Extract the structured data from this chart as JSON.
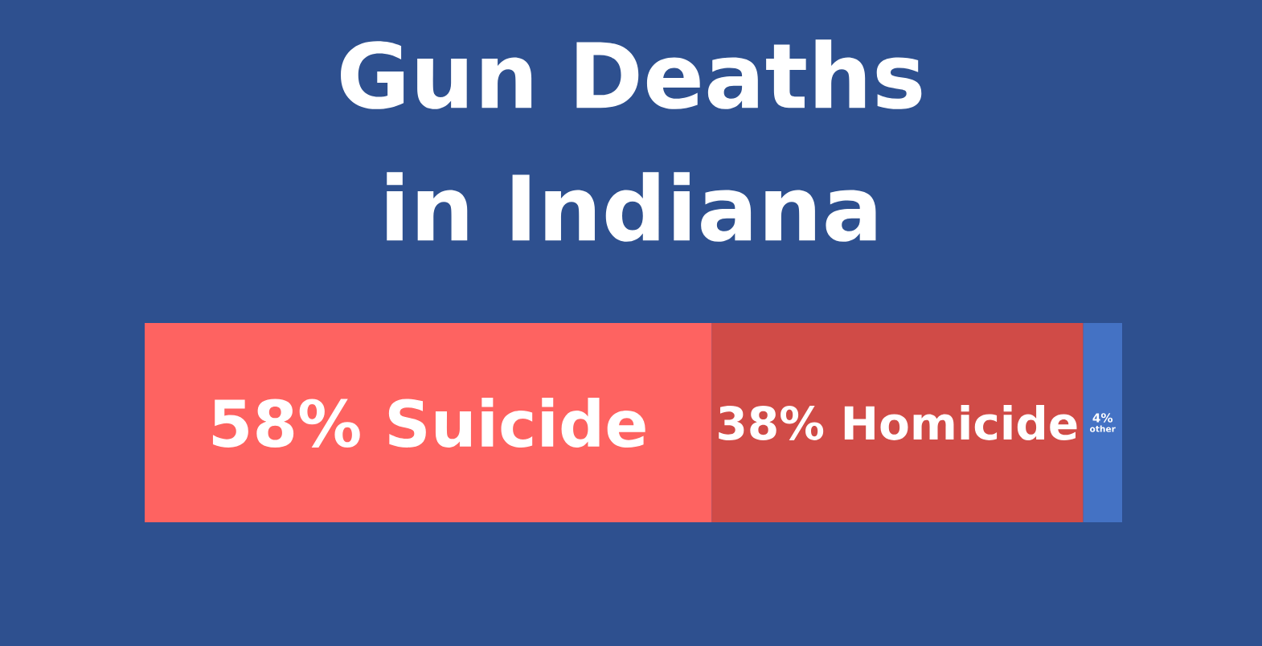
{
  "chart_data": {
    "type": "bar",
    "title": "Gun Deaths in Indiana",
    "orientation": "horizontal",
    "stacked": true,
    "categories": [
      null
    ],
    "xlim": [
      0,
      100
    ],
    "tick_labels": false,
    "legend": false,
    "series": [
      {
        "name": "Suicide",
        "color": "#fe6361",
        "values": [
          58
        ],
        "value_labels": [
          "58%"
        ]
      },
      {
        "name": "Homicide",
        "color": "#d04b47",
        "values": [
          38
        ],
        "value_labels": [
          "38%"
        ]
      },
      {
        "name": "other",
        "color": "#4472c4",
        "values": [
          4
        ],
        "value_labels": [
          "4%"
        ]
      }
    ]
  }
}
